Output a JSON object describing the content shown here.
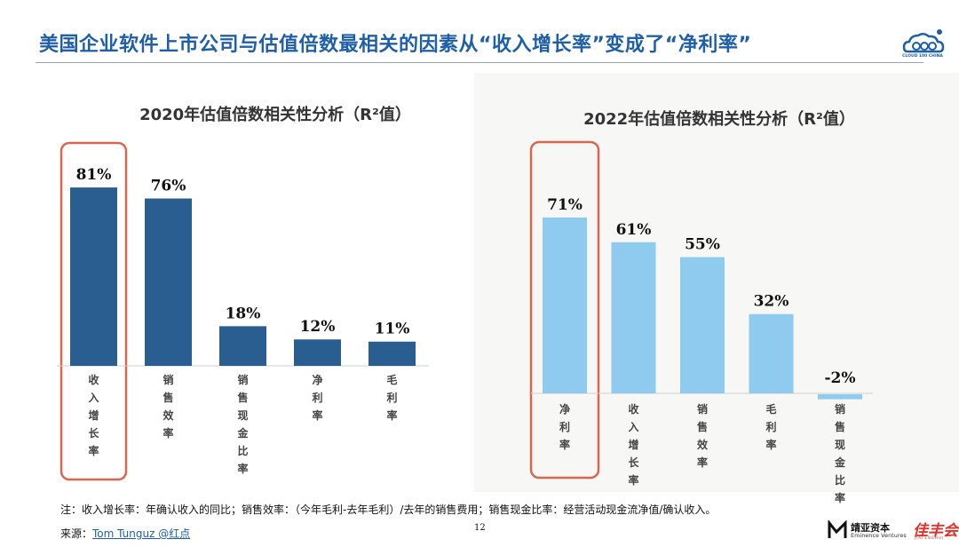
{
  "slide": {
    "title": "美国企业软件上市公司与估值倍数最相关的因素从“收入增长率”变成了“净利率”",
    "logo_text": "CLOUD 100 CHINA",
    "note": "注：收入增长率：年确认收入的同比；销售效率：（今年毛利-去年毛利）/去年的销售费用；销售现金比率：经营活动现金流净值/确认收入。",
    "source_label": "来源：",
    "source_link": "Tom Tunguz @红点",
    "page_number": "12",
    "brand_jingya": "靖亚资本",
    "brand_jingya_sub": "Eminence Ventures",
    "brand_jiafeng": "佳丰会",
    "brand_jiafeng_sub": "JIAFENGHUI"
  },
  "chart_data": [
    {
      "type": "bar",
      "title": "2020年估值倍数相关性分析（R²值）",
      "categories": [
        "收入增长率",
        "销售效率",
        "销售现金比率",
        "净利率",
        "毛利率"
      ],
      "values": [
        81,
        76,
        18,
        12,
        11
      ],
      "labels": [
        "81%",
        "76%",
        "18%",
        "12%",
        "11%"
      ],
      "highlight_index": 0,
      "color": "#2a5d90",
      "highlight_color": "#d9664f"
    },
    {
      "type": "bar",
      "title": "2022年估值倍数相关性分析（R²值）",
      "categories": [
        "净利率",
        "收入增长率",
        "销售效率",
        "毛利率",
        "销售现金比率"
      ],
      "values": [
        71,
        61,
        55,
        32,
        -2
      ],
      "labels": [
        "71%",
        "61%",
        "55%",
        "32%",
        "-2%"
      ],
      "highlight_index": 0,
      "color": "#8fcaef",
      "highlight_color": "#d9664f"
    }
  ]
}
